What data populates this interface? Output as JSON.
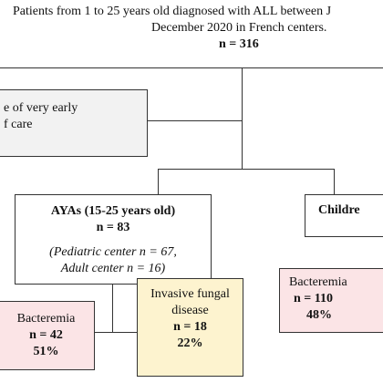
{
  "top_box": {
    "line1": "Patients from 1 to 25 years old diagnosed with ALL between J",
    "line2": "December 2020 in French centers.",
    "count": "n = 316"
  },
  "excluded_box": {
    "line1": "e of very early",
    "line2": "f care"
  },
  "ayas_box": {
    "title": "AYAs (15-25 years old)",
    "count": "n = 83",
    "sub1": "(Pediatric center n = 67,",
    "sub2": "Adult center n = 16)"
  },
  "children_box": {
    "title": "Childre"
  },
  "ayas_bacteremia": {
    "label": "Bacteremia",
    "count": "n = 42",
    "pct": "51%"
  },
  "ayas_fungal": {
    "label1": "Invasive fungal",
    "label2": "disease",
    "count": "n = 18",
    "pct": "22%"
  },
  "children_bacteremia": {
    "label": "Bacteremia",
    "count": "n = 110",
    "pct": "48%"
  },
  "colors": {
    "bacteremia_fill": "#fbe4e6",
    "fungal_fill": "#fdf3cf",
    "excluded_fill": "#f2f2f2",
    "border": "#333333"
  }
}
